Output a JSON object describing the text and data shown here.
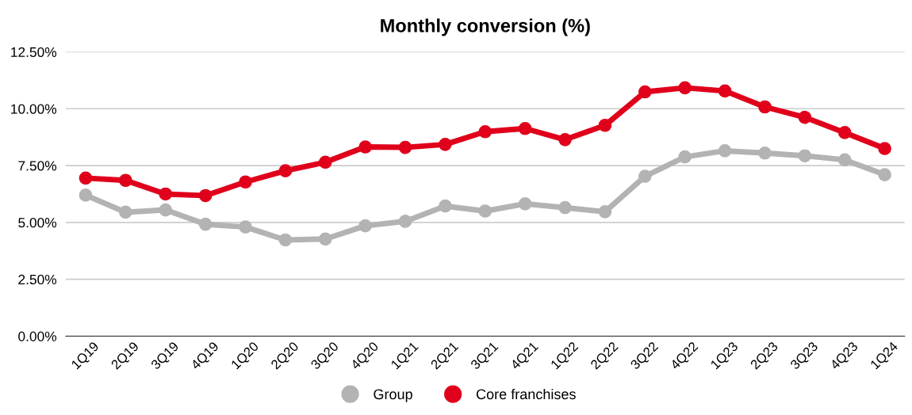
{
  "chart_data": {
    "type": "line",
    "title": "Monthly conversion (%)",
    "categories": [
      "1Q19",
      "2Q19",
      "3Q19",
      "4Q19",
      "1Q20",
      "2Q20",
      "3Q20",
      "4Q20",
      "1Q21",
      "2Q21",
      "3Q21",
      "4Q21",
      "1Q22",
      "2Q22",
      "3Q22",
      "4Q22",
      "1Q23",
      "2Q23",
      "3Q23",
      "4Q23",
      "1Q24"
    ],
    "series": [
      {
        "name": "Group",
        "color": "#b3b3b3",
        "values": [
          6.2,
          5.45,
          5.55,
          4.92,
          4.8,
          4.23,
          4.27,
          4.85,
          5.05,
          5.72,
          5.5,
          5.82,
          5.65,
          5.47,
          7.03,
          7.88,
          8.15,
          8.05,
          7.93,
          7.75,
          7.1
        ]
      },
      {
        "name": "Core franchises",
        "color": "#e0001b",
        "values": [
          6.95,
          6.85,
          6.25,
          6.18,
          6.78,
          7.27,
          7.65,
          8.32,
          8.3,
          8.43,
          8.99,
          9.13,
          8.64,
          9.27,
          10.74,
          10.92,
          10.78,
          10.08,
          9.62,
          8.95,
          8.25
        ]
      }
    ],
    "ylim": [
      0,
      12.5
    ],
    "yticks": [
      {
        "value": 0,
        "label": "0.00%"
      },
      {
        "value": 2.5,
        "label": "2.50%"
      },
      {
        "value": 5,
        "label": "5.00%"
      },
      {
        "value": 7.5,
        "label": "7.50%"
      },
      {
        "value": 10,
        "label": "10.00%"
      },
      {
        "value": 12.5,
        "label": "12.50%"
      }
    ],
    "grid": "y",
    "legend": "bottom",
    "marker": "circle",
    "line_style": "solid"
  }
}
